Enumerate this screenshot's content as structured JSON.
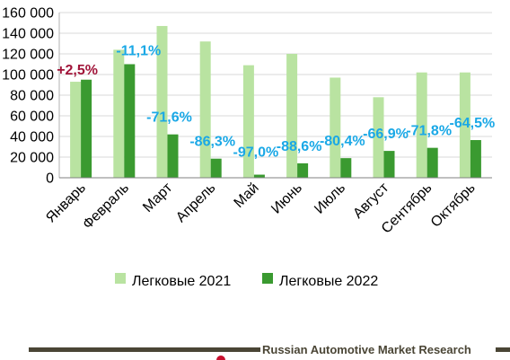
{
  "chart_data": {
    "type": "bar",
    "categories": [
      "Январь",
      "Февраль",
      "Март",
      "Апрель",
      "Май",
      "Июнь",
      "Июль",
      "Август",
      "Сентябрь",
      "Октябрь"
    ],
    "series": [
      {
        "name": "Легковые 2021",
        "color": "#b9e3a1",
        "values": [
          93000,
          124000,
          147000,
          132000,
          109000,
          120000,
          97000,
          78000,
          102000,
          102000
        ]
      },
      {
        "name": "Легковые 2022",
        "color": "#3a9a30",
        "values": [
          95000,
          110000,
          42000,
          18500,
          3000,
          14000,
          19000,
          26000,
          29000,
          36500
        ]
      }
    ],
    "annotations": [
      {
        "category": "Январь",
        "text": "+2,5%",
        "color": "#a11439"
      },
      {
        "category": "Февраль",
        "text": "-11,1%",
        "color": "#1aa8e6"
      },
      {
        "category": "Март",
        "text": "-71,6%",
        "color": "#1aa8e6"
      },
      {
        "category": "Апрель",
        "text": "-86,3%",
        "color": "#1aa8e6"
      },
      {
        "category": "Май",
        "text": "-97,0%",
        "color": "#1aa8e6"
      },
      {
        "category": "Июнь",
        "text": "-88,6%",
        "color": "#1aa8e6"
      },
      {
        "category": "Июль",
        "text": "-80,4%",
        "color": "#1aa8e6"
      },
      {
        "category": "Август",
        "text": "-66,9%",
        "color": "#1aa8e6"
      },
      {
        "category": "Сентябрь",
        "text": "-71,8%",
        "color": "#1aa8e6"
      },
      {
        "category": "Октябрь",
        "text": "-64,5%",
        "color": "#1aa8e6"
      }
    ],
    "yticks": [
      "0",
      "20 000",
      "40 000",
      "60 000",
      "80 000",
      "100 000",
      "120 000",
      "140 000",
      "160 000"
    ],
    "ylim": [
      0,
      160000
    ],
    "grid": true,
    "legend_position": "bottom"
  },
  "footer": {
    "text": "Russian Automotive Market Research"
  }
}
